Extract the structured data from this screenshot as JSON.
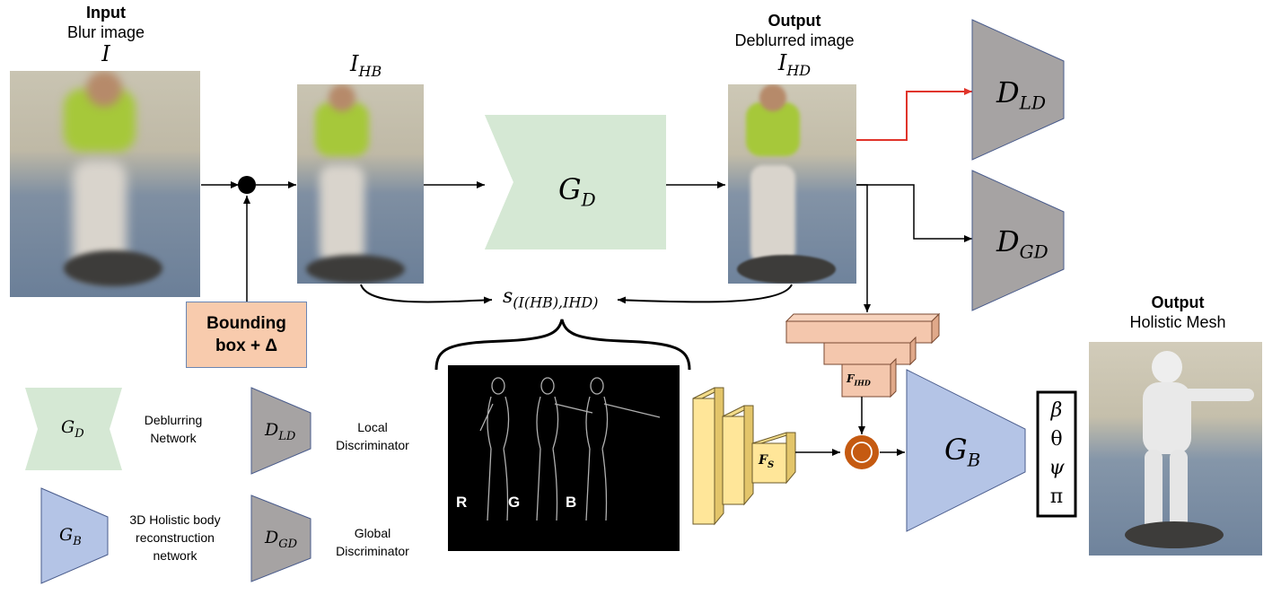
{
  "input": {
    "heading": "Input",
    "subtitle": "Blur image",
    "symbol": "I"
  },
  "hb": {
    "symbol_base": "I",
    "symbol_sub": "HB"
  },
  "output_deblur": {
    "heading": "Output",
    "subtitle": "Deblurred image",
    "symbol_base": "I",
    "symbol_sub": "HD"
  },
  "bbox": {
    "line1": "Bounding",
    "line2": "box + Δ"
  },
  "generator_d": {
    "base": "G",
    "sub": "D"
  },
  "disc_ld": {
    "base": "D",
    "sub": "LD"
  },
  "disc_gd": {
    "base": "D",
    "sub": "GD"
  },
  "generator_b": {
    "base": "G",
    "sub": "B"
  },
  "similarity": {
    "base": "s",
    "sub": "(I(HB),IHD)"
  },
  "channels": {
    "r": "R",
    "g": "G",
    "b": "B"
  },
  "feature_fs": {
    "base": "F",
    "sub": "S"
  },
  "feature_fihd": {
    "base": "F",
    "sub": "IHD"
  },
  "concat": {
    "symbol": "©"
  },
  "params": [
    "β",
    "θ",
    "ψ",
    "π"
  ],
  "output_mesh": {
    "heading": "Output",
    "subtitle": "Holistic Mesh"
  },
  "legend": {
    "gd": {
      "base": "G",
      "sub": "D",
      "line1": "Deblurring",
      "line2": "Network"
    },
    "dld": {
      "base": "D",
      "sub": "LD",
      "line1": "Local",
      "line2": "Discriminator"
    },
    "gb": {
      "base": "G",
      "sub": "B",
      "line1": "3D Holistic body",
      "line2": "reconstruction",
      "line3": "network"
    },
    "dgd": {
      "base": "D",
      "sub": "GD",
      "line1": "Global",
      "line2": "Discriminator"
    }
  },
  "colors": {
    "deblur_green": "#d5e8d4",
    "disc_grey": "#a6a3a3",
    "recon_blue": "#b4c4e6",
    "bbox_salmon": "#f8cbad",
    "feature_yellow": "#ffe699",
    "feature_salmon": "#f4c7ad",
    "concat_orange": "#c55a11",
    "highlight_red": "#e0342a"
  }
}
